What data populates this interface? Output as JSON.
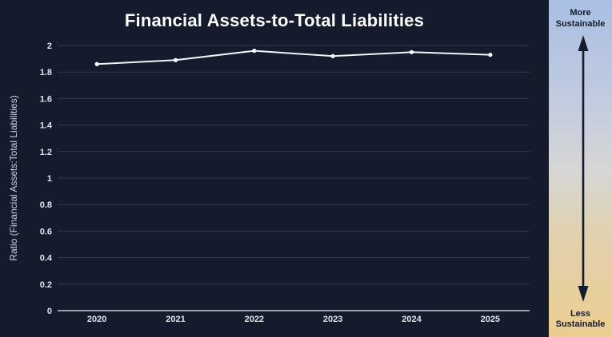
{
  "title": "Financial Assets-to-Total Liabilities",
  "sidebar": {
    "top_label": "More Sustainable",
    "bottom_label": "Less Sustainable",
    "gradient_top_color": "#a9bfe3",
    "gradient_bottom_color": "#ebcd90",
    "arrow_color": "#141b2c",
    "label_color": "#141b2c"
  },
  "colors": {
    "background": "#141b2c",
    "gridline": "#333a4d",
    "axis_line": "#c9cdd4",
    "tick_label": "#e3e5e9",
    "axis_title": "#ccd0d8",
    "line": "#f2f3f5",
    "marker": "#ffffff",
    "title": "#ffffff"
  },
  "chart_data": {
    "type": "line",
    "title": "Financial Assets-to-Total Liabilities",
    "xlabel": "",
    "ylabel": "Ratio (Financial Assets:Total Liabilities)",
    "categories": [
      "2020",
      "2021",
      "2022",
      "2023",
      "2024",
      "2025"
    ],
    "series": [
      {
        "name": "Ratio (Financial Assets:Total Liabilities)",
        "values": [
          1.86,
          1.89,
          1.96,
          1.92,
          1.95,
          1.93
        ]
      }
    ],
    "ylim": [
      0,
      2
    ],
    "y_ticks": [
      0,
      0.2,
      0.4,
      0.6,
      0.8,
      1,
      1.2,
      1.4,
      1.6,
      1.8,
      2
    ],
    "grid": true,
    "legend": "none",
    "marker": "circle"
  }
}
